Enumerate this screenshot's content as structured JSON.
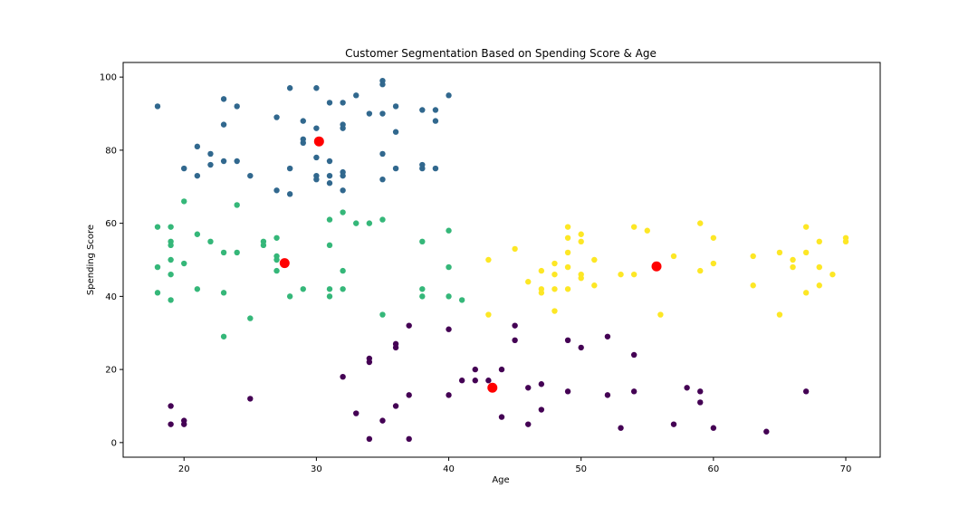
{
  "chart_data": {
    "type": "scatter",
    "title": "Customer Segmentation Based on Spending Score & Age",
    "xlabel": "Age",
    "ylabel": "Spending Score",
    "xlim": [
      15.4,
      72.6
    ],
    "ylim": [
      -4.0,
      104.0
    ],
    "xticks": [
      "20",
      "30",
      "40",
      "50",
      "60",
      "70"
    ],
    "yticks": [
      "0",
      "20",
      "40",
      "60",
      "80",
      "100"
    ],
    "grid": false,
    "legend": "none",
    "series": [
      {
        "color": "#440154",
        "points": [
          [
            19,
            10
          ],
          [
            19,
            5
          ],
          [
            20,
            6
          ],
          [
            20,
            5
          ],
          [
            25,
            12
          ],
          [
            32,
            18
          ],
          [
            33,
            8
          ],
          [
            34,
            1
          ],
          [
            34,
            22
          ],
          [
            34,
            23
          ],
          [
            35,
            6
          ],
          [
            36,
            10
          ],
          [
            36,
            26
          ],
          [
            36,
            27
          ],
          [
            37,
            13
          ],
          [
            37,
            32
          ],
          [
            37,
            1
          ],
          [
            40,
            13
          ],
          [
            40,
            31
          ],
          [
            41,
            17
          ],
          [
            42,
            20
          ],
          [
            42,
            17
          ],
          [
            43,
            17
          ],
          [
            44,
            20
          ],
          [
            44,
            7
          ],
          [
            45,
            32
          ],
          [
            45,
            28
          ],
          [
            46,
            5
          ],
          [
            46,
            15
          ],
          [
            47,
            16
          ],
          [
            47,
            9
          ],
          [
            49,
            28
          ],
          [
            49,
            14
          ],
          [
            50,
            26
          ],
          [
            52,
            29
          ],
          [
            52,
            13
          ],
          [
            53,
            4
          ],
          [
            54,
            14
          ],
          [
            54,
            24
          ],
          [
            57,
            5
          ],
          [
            58,
            15
          ],
          [
            59,
            14
          ],
          [
            59,
            11
          ],
          [
            60,
            4
          ],
          [
            64,
            3
          ],
          [
            67,
            14
          ]
        ]
      },
      {
        "color": "#31688e",
        "points": [
          [
            18,
            92
          ],
          [
            20,
            75
          ],
          [
            21,
            81
          ],
          [
            21,
            73
          ],
          [
            22,
            79
          ],
          [
            22,
            76
          ],
          [
            23,
            94
          ],
          [
            23,
            87
          ],
          [
            23,
            77
          ],
          [
            24,
            92
          ],
          [
            24,
            77
          ],
          [
            25,
            73
          ],
          [
            27,
            89
          ],
          [
            27,
            69
          ],
          [
            28,
            97
          ],
          [
            28,
            75
          ],
          [
            28,
            68
          ],
          [
            29,
            88
          ],
          [
            29,
            83
          ],
          [
            29,
            82
          ],
          [
            30,
            97
          ],
          [
            30,
            86
          ],
          [
            30,
            78
          ],
          [
            30,
            73
          ],
          [
            30,
            72
          ],
          [
            31,
            93
          ],
          [
            31,
            77
          ],
          [
            31,
            73
          ],
          [
            31,
            71
          ],
          [
            32,
            93
          ],
          [
            32,
            87
          ],
          [
            32,
            86
          ],
          [
            32,
            74
          ],
          [
            32,
            73
          ],
          [
            32,
            69
          ],
          [
            33,
            95
          ],
          [
            34,
            90
          ],
          [
            35,
            99
          ],
          [
            35,
            98
          ],
          [
            35,
            90
          ],
          [
            35,
            79
          ],
          [
            35,
            72
          ],
          [
            36,
            92
          ],
          [
            36,
            85
          ],
          [
            36,
            75
          ],
          [
            38,
            91
          ],
          [
            38,
            76
          ],
          [
            38,
            75
          ],
          [
            39,
            91
          ],
          [
            39,
            88
          ],
          [
            39,
            75
          ],
          [
            40,
            95
          ]
        ]
      },
      {
        "color": "#35b779",
        "points": [
          [
            18,
            59
          ],
          [
            18,
            48
          ],
          [
            18,
            41
          ],
          [
            19,
            59
          ],
          [
            19,
            55
          ],
          [
            19,
            54
          ],
          [
            19,
            50
          ],
          [
            19,
            46
          ],
          [
            19,
            39
          ],
          [
            20,
            66
          ],
          [
            20,
            49
          ],
          [
            21,
            57
          ],
          [
            21,
            42
          ],
          [
            22,
            55
          ],
          [
            23,
            52
          ],
          [
            23,
            41
          ],
          [
            23,
            29
          ],
          [
            24,
            65
          ],
          [
            24,
            52
          ],
          [
            25,
            34
          ],
          [
            26,
            55
          ],
          [
            26,
            54
          ],
          [
            27,
            56
          ],
          [
            27,
            51
          ],
          [
            27,
            50
          ],
          [
            27,
            47
          ],
          [
            28,
            40
          ],
          [
            29,
            42
          ],
          [
            31,
            61
          ],
          [
            31,
            54
          ],
          [
            31,
            42
          ],
          [
            31,
            40
          ],
          [
            32,
            63
          ],
          [
            32,
            47
          ],
          [
            32,
            42
          ],
          [
            33,
            60
          ],
          [
            34,
            60
          ],
          [
            35,
            61
          ],
          [
            35,
            35
          ],
          [
            38,
            55
          ],
          [
            38,
            42
          ],
          [
            38,
            40
          ],
          [
            40,
            58
          ],
          [
            40,
            48
          ],
          [
            40,
            40
          ],
          [
            41,
            39
          ]
        ]
      },
      {
        "color": "#fde725",
        "points": [
          [
            43,
            50
          ],
          [
            43,
            35
          ],
          [
            45,
            53
          ],
          [
            46,
            44
          ],
          [
            47,
            47
          ],
          [
            47,
            42
          ],
          [
            47,
            41
          ],
          [
            48,
            49
          ],
          [
            48,
            46
          ],
          [
            48,
            42
          ],
          [
            48,
            36
          ],
          [
            49,
            59
          ],
          [
            49,
            56
          ],
          [
            49,
            52
          ],
          [
            49,
            48
          ],
          [
            49,
            42
          ],
          [
            50,
            57
          ],
          [
            50,
            55
          ],
          [
            50,
            46
          ],
          [
            50,
            45
          ],
          [
            51,
            50
          ],
          [
            51,
            43
          ],
          [
            53,
            46
          ],
          [
            54,
            59
          ],
          [
            54,
            46
          ],
          [
            55,
            58
          ],
          [
            56,
            35
          ],
          [
            57,
            51
          ],
          [
            59,
            60
          ],
          [
            59,
            47
          ],
          [
            60,
            56
          ],
          [
            60,
            49
          ],
          [
            63,
            51
          ],
          [
            63,
            43
          ],
          [
            65,
            52
          ],
          [
            65,
            35
          ],
          [
            66,
            50
          ],
          [
            66,
            48
          ],
          [
            67,
            59
          ],
          [
            67,
            52
          ],
          [
            67,
            41
          ],
          [
            68,
            55
          ],
          [
            68,
            48
          ],
          [
            68,
            43
          ],
          [
            69,
            46
          ],
          [
            70,
            56
          ],
          [
            70,
            55
          ]
        ]
      }
    ],
    "centroids": {
      "color": "#ff0000",
      "points": [
        [
          43.3,
          15.0
        ],
        [
          30.2,
          82.4
        ],
        [
          27.6,
          49.1
        ],
        [
          55.7,
          48.2
        ]
      ]
    }
  }
}
